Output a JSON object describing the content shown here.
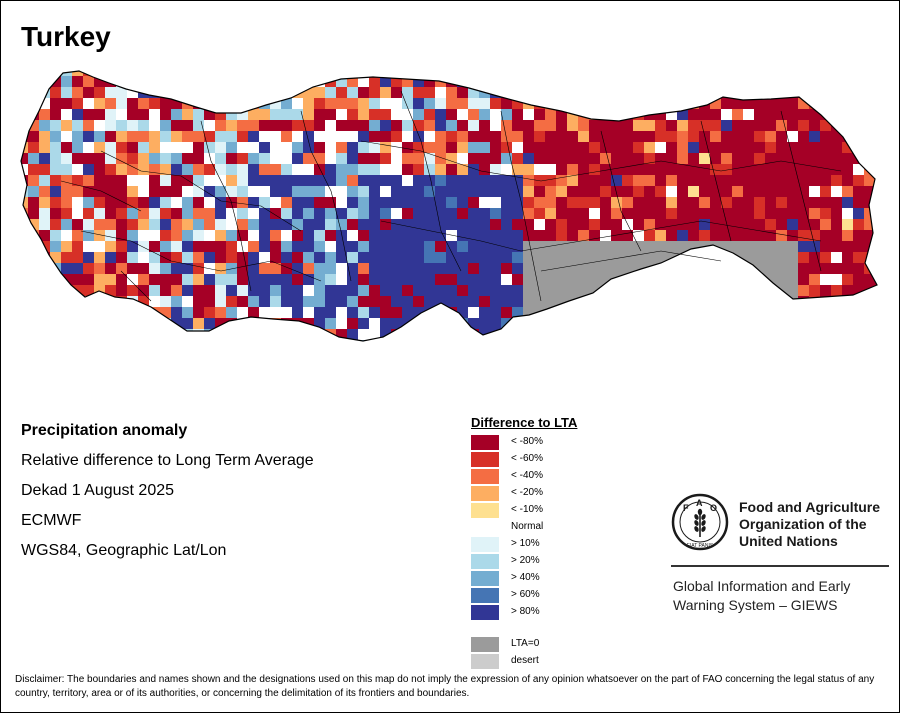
{
  "title": "Turkey",
  "info": {
    "line1": "Precipitation anomaly",
    "line2": "Relative difference to Long Term Average",
    "line3": "Dekad 1 August 2025",
    "line4": "ECMWF",
    "line5": "WGS84, Geographic Lat/Lon"
  },
  "legend": {
    "title": "Difference to LTA",
    "classes": [
      {
        "label": "< -80%",
        "color": "#a50026"
      },
      {
        "label": "< -60%",
        "color": "#d73027"
      },
      {
        "label": "< -40%",
        "color": "#f46d43"
      },
      {
        "label": "< -20%",
        "color": "#fdae61"
      },
      {
        "label": "< -10%",
        "color": "#fee090"
      },
      {
        "label": "Normal",
        "color": "#ffffff"
      },
      {
        "label": "> 10%",
        "color": "#e0f3f8"
      },
      {
        "label": "> 20%",
        "color": "#abd9e9"
      },
      {
        "label": "> 40%",
        "color": "#74add1"
      },
      {
        "label": "> 60%",
        "color": "#4575b4"
      },
      {
        "label": "> 80%",
        "color": "#313695"
      }
    ],
    "extra": [
      {
        "label": "LTA=0",
        "color": "#9b9b9b"
      },
      {
        "label": "desert",
        "color": "#cccccc"
      }
    ]
  },
  "fao": {
    "org_line1": "Food and Agriculture",
    "org_line2": "Organization of the",
    "org_line3": "United Nations",
    "giews_line1": "Global Information and Early",
    "giews_line2": "Warning System – GIEWS",
    "logo_top": "FAO",
    "logo_motto": "FIAT PANIS",
    "logo_color": "#1a1a1a"
  },
  "disclaimer": "Disclaimer: The boundaries and names shown and the designations used on this map do not imply the expression of any opinion whatsoever on the part of FAO concerning the legal status of any country, territory, area or of its authorities, or concerning the delimitation of its frontiers and boundaries."
}
